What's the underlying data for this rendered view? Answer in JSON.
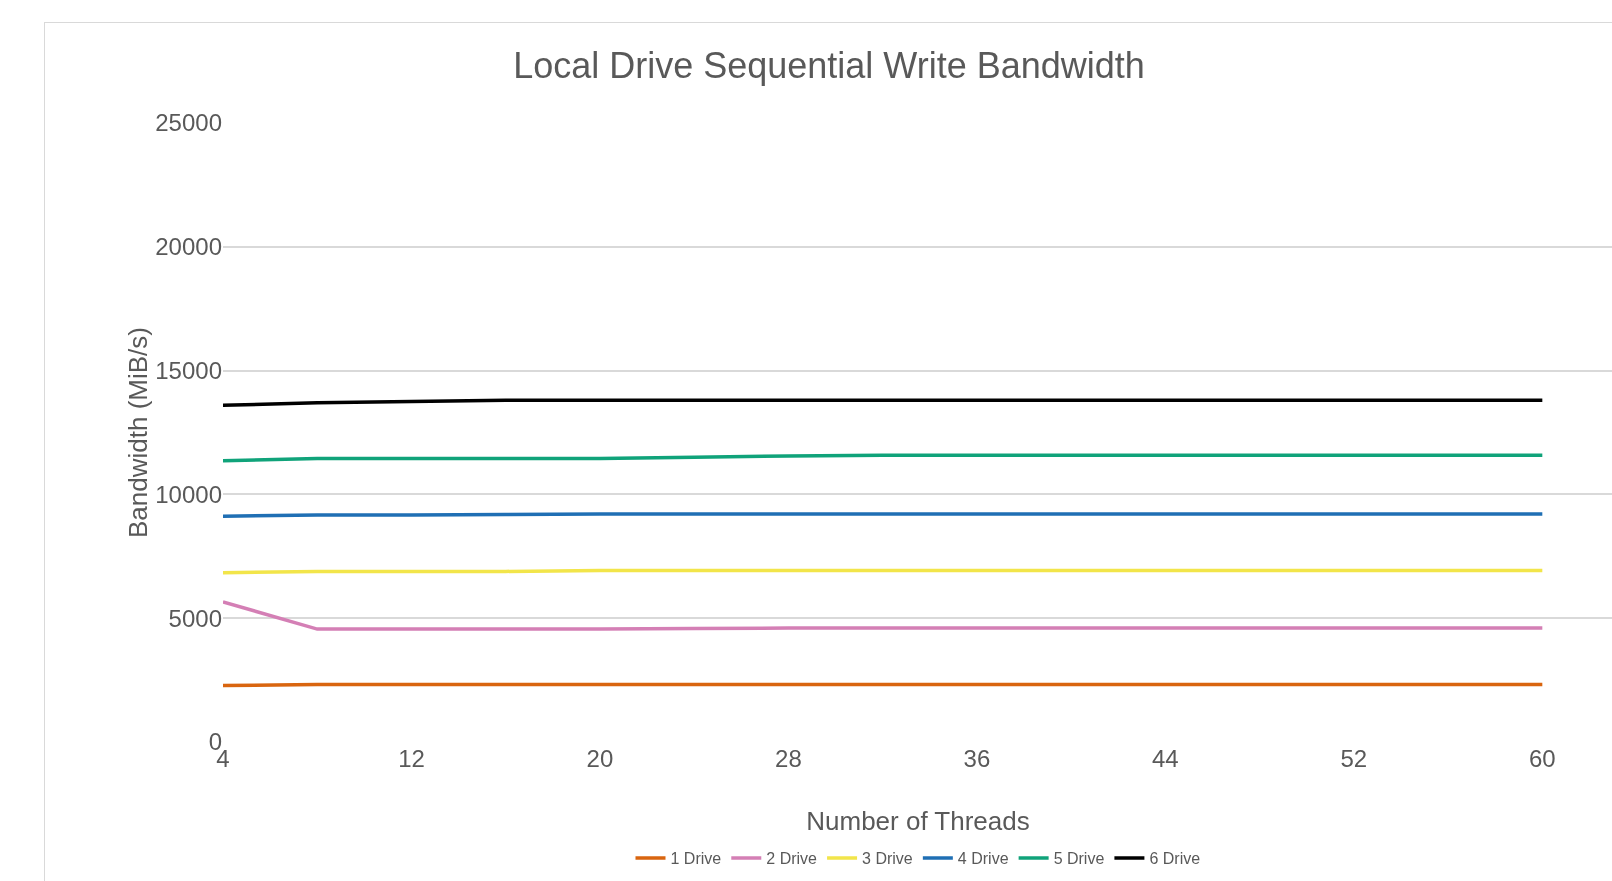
{
  "chart_data": {
    "type": "line",
    "title": "Local Drive Sequential Write Bandwidth",
    "xlabel": "Number of Threads",
    "ylabel": "Bandwidth (MiB/s)",
    "x": [
      4,
      8,
      12,
      16,
      20,
      24,
      28,
      32,
      36,
      40,
      44,
      48,
      52,
      56,
      60
    ],
    "series": [
      {
        "name": "1 Drive",
        "color": "#d9650f",
        "values": [
          2280,
          2320,
          2320,
          2320,
          2320,
          2320,
          2320,
          2320,
          2320,
          2320,
          2320,
          2320,
          2320,
          2320,
          2320
        ]
      },
      {
        "name": "2 Drive",
        "color": "#d47fb5",
        "values": [
          5660,
          4560,
          4560,
          4560,
          4560,
          4580,
          4600,
          4600,
          4600,
          4600,
          4600,
          4600,
          4600,
          4600,
          4600
        ]
      },
      {
        "name": "3 Drive",
        "color": "#f2e54a",
        "values": [
          6840,
          6890,
          6890,
          6890,
          6930,
          6930,
          6930,
          6930,
          6930,
          6930,
          6930,
          6930,
          6930,
          6930,
          6930
        ]
      },
      {
        "name": "4 Drive",
        "color": "#1f6fb4",
        "values": [
          9120,
          9170,
          9170,
          9190,
          9210,
          9210,
          9210,
          9210,
          9210,
          9210,
          9210,
          9210,
          9210,
          9210,
          9210
        ]
      },
      {
        "name": "5 Drive",
        "color": "#10a37a",
        "values": [
          11360,
          11450,
          11450,
          11450,
          11450,
          11500,
          11550,
          11580,
          11580,
          11580,
          11580,
          11580,
          11580,
          11580,
          11580
        ]
      },
      {
        "name": "6 Drive",
        "color": "#000000",
        "values": [
          13600,
          13700,
          13750,
          13800,
          13800,
          13800,
          13800,
          13800,
          13800,
          13800,
          13800,
          13800,
          13800,
          13800,
          13800
        ]
      }
    ],
    "xlim": [
      4,
      63
    ],
    "xticks": [
      4,
      12,
      20,
      28,
      36,
      44,
      52,
      60
    ],
    "ylim": [
      0,
      25000
    ],
    "yticks": [
      0,
      5000,
      10000,
      15000,
      20000,
      25000
    ],
    "grid": "y",
    "legend": "bottom",
    "marker": "none",
    "line_style": "solid"
  }
}
